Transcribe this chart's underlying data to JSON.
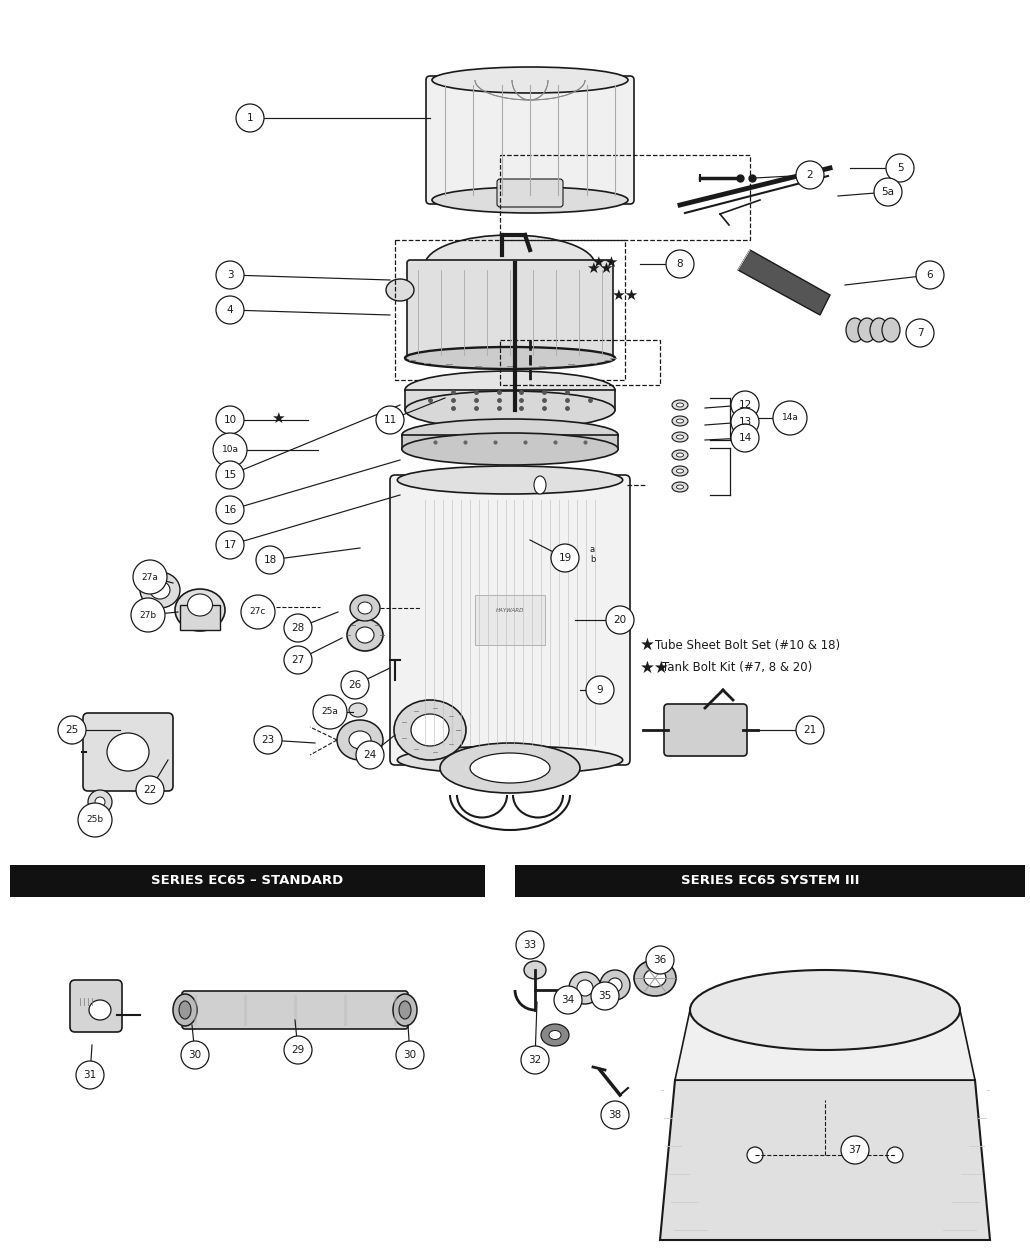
{
  "bg_color": "#ffffff",
  "line_color": "#1a1a1a",
  "section1_title": "SERIES EC65 – STANDARD",
  "section2_title": "SERIES EC65 SYSTEM III",
  "legend1": "★  Tube Sheet Bolt Set (#10 & 18)",
  "legend2": "★★  Tank Bolt Kit (#7, 8 & 20)",
  "figsize": [
    10.3,
    12.6
  ],
  "dpi": 100,
  "note_star1": "Tube Sheet Bolt Set (#10 & 18)",
  "note_star2": "Tank Bolt Kit (#7, 8 & 20)"
}
